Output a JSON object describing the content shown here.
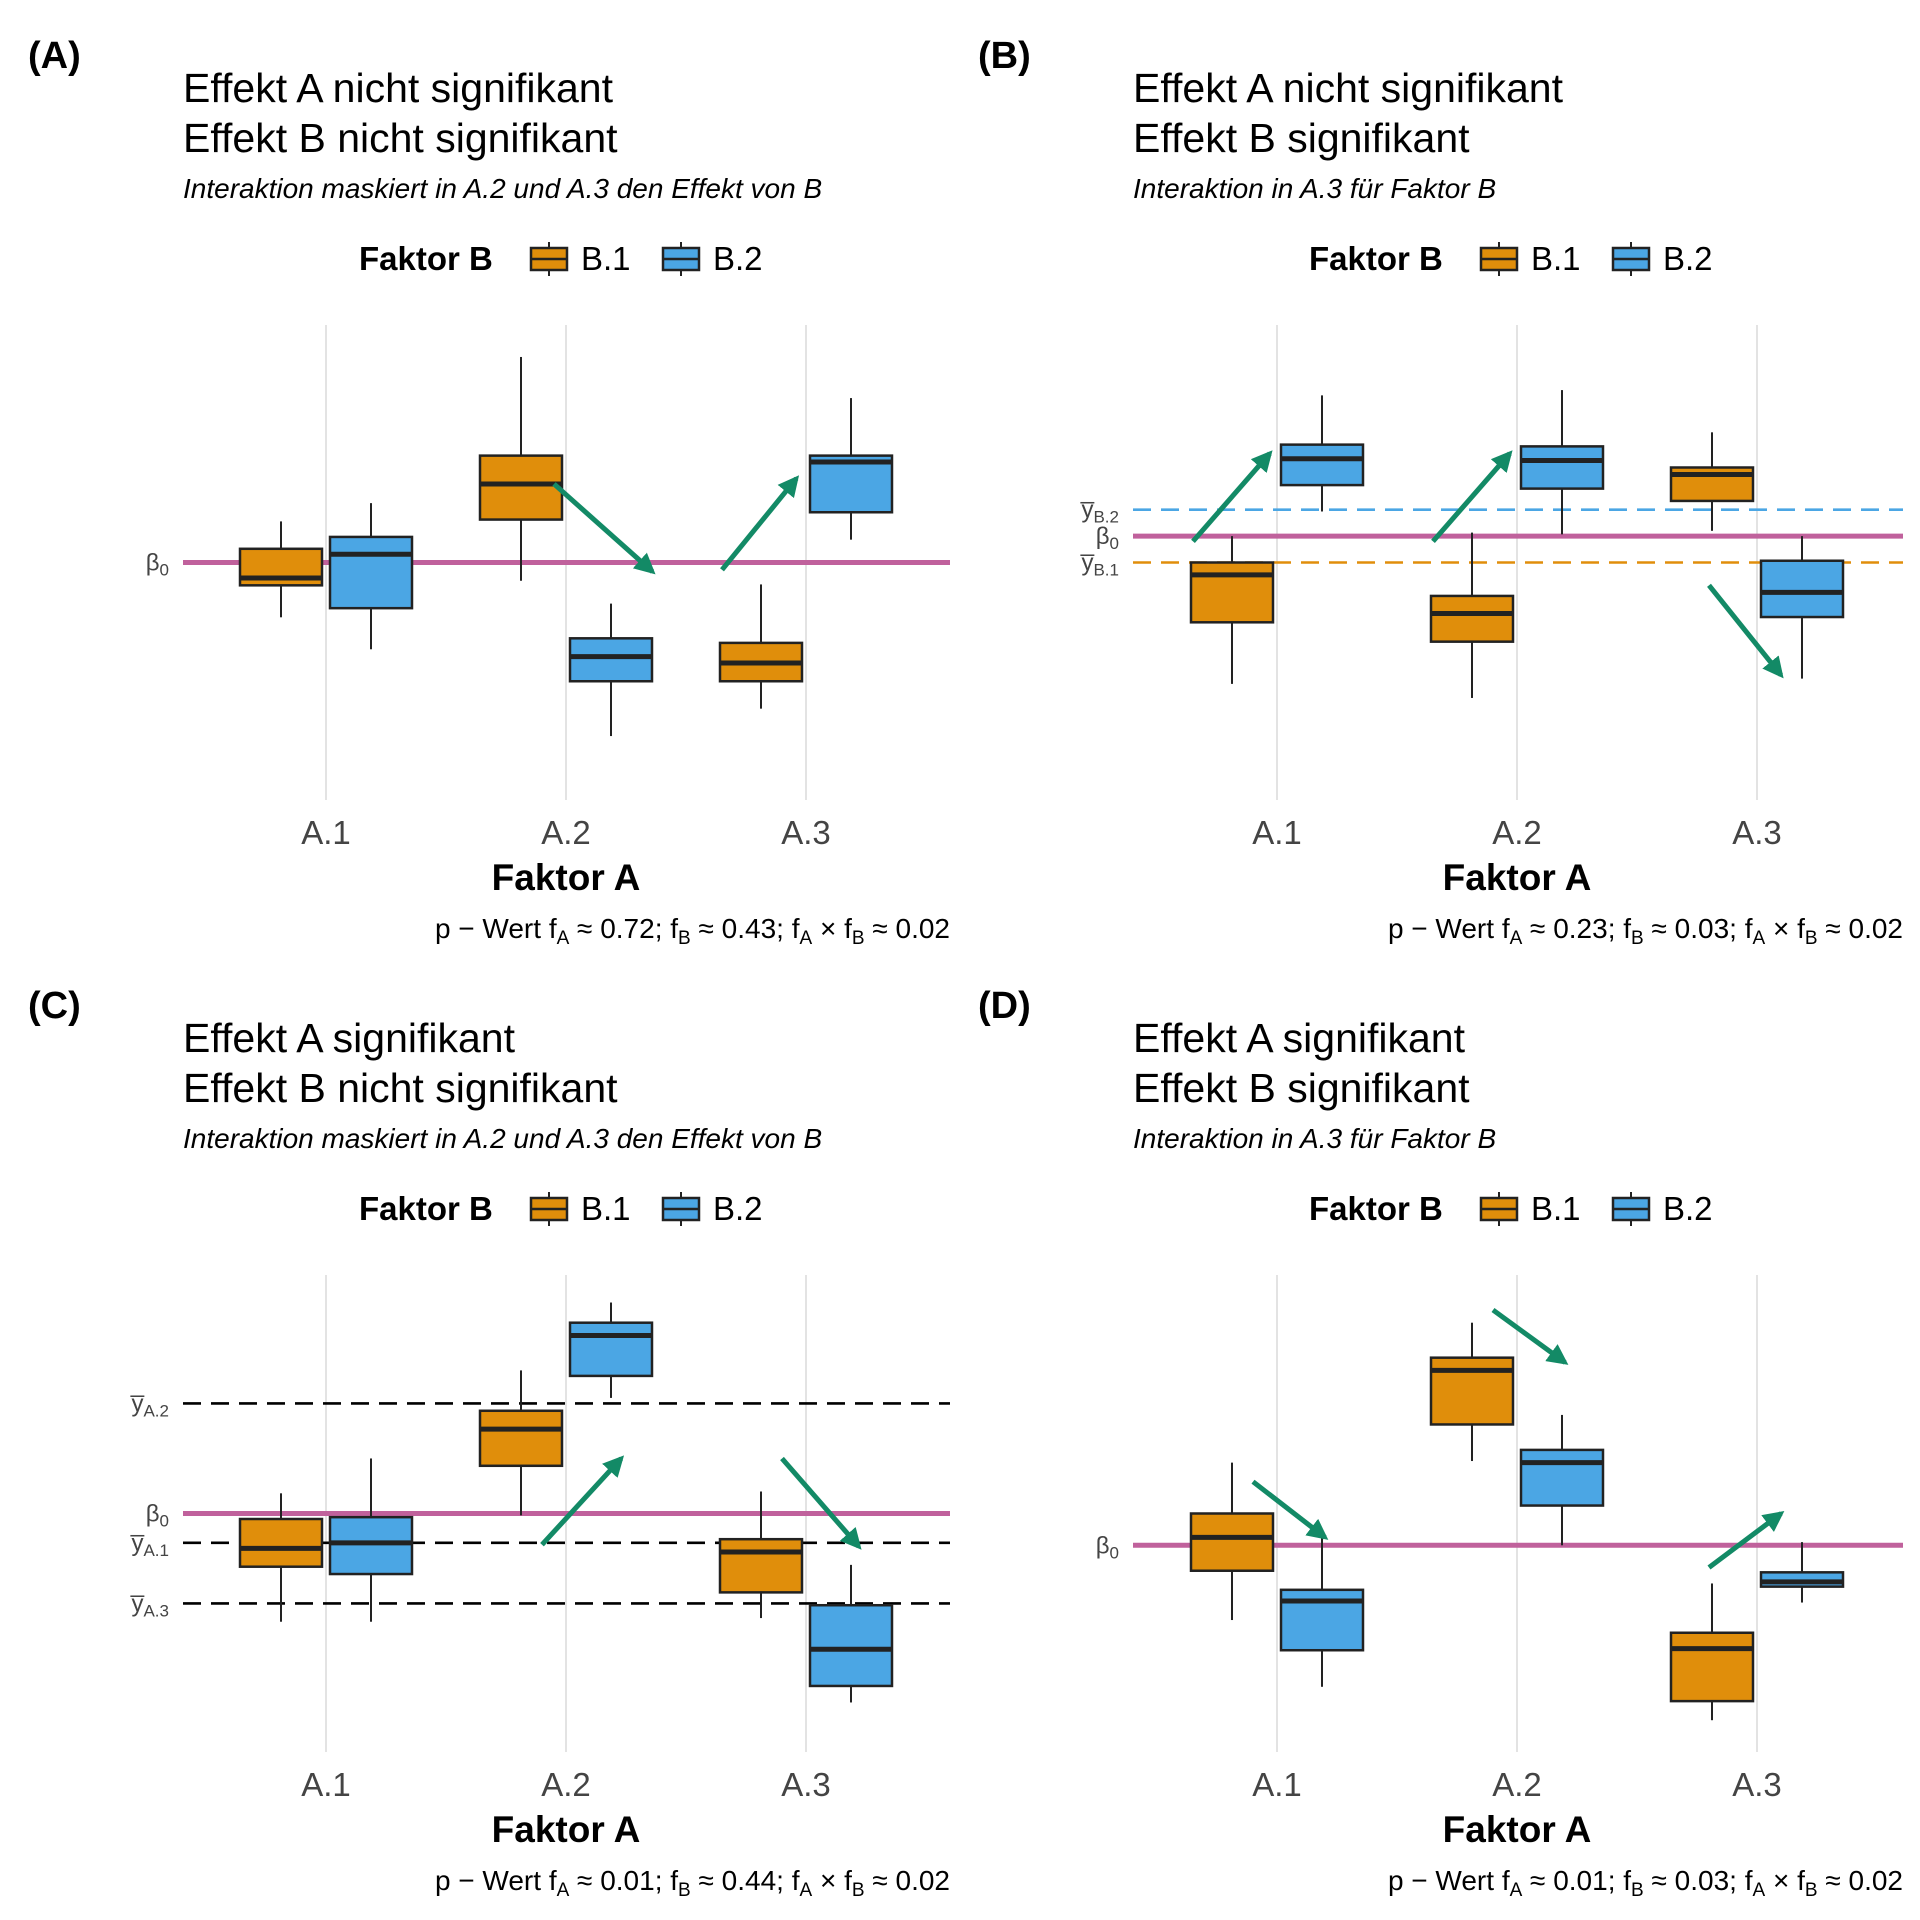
{
  "colors": {
    "B.1": "#E08E0B",
    "B.2": "#4BA6E4",
    "beta_line": "#C0619C",
    "arrow": "#138A66",
    "grid": "#E3E3E3",
    "dashed_B1": "#E08E0B",
    "dashed_B2": "#4BA6E4",
    "dashed_A": "#000000"
  },
  "legend": {
    "title": "Faktor B",
    "items": [
      "B.1",
      "B.2"
    ]
  },
  "chart_data": [
    {
      "panel": "(A)",
      "type": "boxplot",
      "title": [
        "Effekt A nicht signifikant",
        "Effekt B nicht signifikant"
      ],
      "subtitle": "Interaktion maskiert in A.2 und A.3 den Effekt von B",
      "xlabel": "Faktor A",
      "categories": [
        "A.1",
        "A.2",
        "A.3"
      ],
      "caption": {
        "prefix": "p − Wert f",
        "a": "A",
        "v1": " ≈ 0.72; f",
        "b": "B",
        "v2": " ≈ 0.43; f",
        "c": "A",
        "mid": " × f",
        "d": "B",
        "v3": " ≈ 0.02"
      },
      "ylim": [
        -2.6,
        2.6
      ],
      "boxes": [
        {
          "cat": "A.1",
          "group": "B.1",
          "min": -0.6,
          "q1": -0.25,
          "median": -0.17,
          "q3": 0.15,
          "max": 0.45
        },
        {
          "cat": "A.1",
          "group": "B.2",
          "min": -0.95,
          "q1": -0.5,
          "median": 0.09,
          "q3": 0.28,
          "max": 0.65
        },
        {
          "cat": "A.2",
          "group": "B.1",
          "min": -0.2,
          "q1": 0.47,
          "median": 0.86,
          "q3": 1.17,
          "max": 2.25
        },
        {
          "cat": "A.2",
          "group": "B.2",
          "min": -1.9,
          "q1": -1.3,
          "median": -1.03,
          "q3": -0.83,
          "max": -0.45
        },
        {
          "cat": "A.3",
          "group": "B.1",
          "min": -1.6,
          "q1": -1.3,
          "median": -1.1,
          "q3": -0.88,
          "max": -0.24
        },
        {
          "cat": "A.3",
          "group": "B.2",
          "min": 0.25,
          "q1": 0.55,
          "median": 1.1,
          "q3": 1.17,
          "max": 1.8
        }
      ],
      "hlines": [
        {
          "y": 0,
          "style": "solid",
          "color": "beta_line",
          "label": "β",
          "sub": "0"
        }
      ],
      "arrows": [
        {
          "x0": 1.95,
          "y0": 0.86,
          "x1": 2.36,
          "y1": -0.1
        },
        {
          "x0": 2.65,
          "y0": -0.08,
          "x1": 2.96,
          "y1": 0.92
        }
      ]
    },
    {
      "panel": "(B)",
      "type": "boxplot",
      "title": [
        "Effekt A nicht signifikant",
        "Effekt B signifikant"
      ],
      "subtitle": "Interaktion in A.3 für Faktor B",
      "xlabel": "Faktor A",
      "categories": [
        "A.1",
        "A.2",
        "A.3"
      ],
      "caption": {
        "prefix": "p − Wert f",
        "a": "A",
        "v1": " ≈ 0.23; f",
        "b": "B",
        "v2": " ≈ 0.03; f",
        "c": "A",
        "mid": " × f",
        "d": "B",
        "v3": " ≈ 0.02"
      },
      "ylim": [
        -1.5,
        1.2
      ],
      "boxes": [
        {
          "cat": "A.1",
          "group": "B.1",
          "min": -0.84,
          "q1": -0.49,
          "median": -0.22,
          "q3": -0.15,
          "max": 0.0
        },
        {
          "cat": "A.1",
          "group": "B.2",
          "min": 0.14,
          "q1": 0.29,
          "median": 0.44,
          "q3": 0.52,
          "max": 0.8
        },
        {
          "cat": "A.2",
          "group": "B.1",
          "min": -0.92,
          "q1": -0.6,
          "median": -0.44,
          "q3": -0.34,
          "max": 0.02
        },
        {
          "cat": "A.2",
          "group": "B.2",
          "min": 0.01,
          "q1": 0.27,
          "median": 0.43,
          "q3": 0.51,
          "max": 0.83
        },
        {
          "cat": "A.3",
          "group": "B.1",
          "min": 0.03,
          "q1": 0.2,
          "median": 0.35,
          "q3": 0.39,
          "max": 0.59
        },
        {
          "cat": "A.3",
          "group": "B.2",
          "min": -0.81,
          "q1": -0.46,
          "median": -0.32,
          "q3": -0.14,
          "max": 0.0
        }
      ],
      "hlines": [
        {
          "y": 0.15,
          "style": "dashed",
          "color": "dashed_B2",
          "label": "y̅",
          "sub": "B.2"
        },
        {
          "y": 0,
          "style": "solid",
          "color": "beta_line",
          "label": "β",
          "sub": "0"
        },
        {
          "y": -0.15,
          "style": "dashed",
          "color": "dashed_B1",
          "label": "y̅",
          "sub": "B.1"
        }
      ],
      "arrows": [
        {
          "x0": 0.65,
          "y0": -0.03,
          "x1": 0.97,
          "y1": 0.47
        },
        {
          "x0": 1.65,
          "y0": -0.03,
          "x1": 1.97,
          "y1": 0.47
        },
        {
          "x0": 2.8,
          "y0": -0.28,
          "x1": 3.1,
          "y1": -0.79
        }
      ]
    },
    {
      "panel": "(C)",
      "type": "boxplot",
      "title": [
        "Effekt A signifikant",
        "Effekt B nicht signifikant"
      ],
      "subtitle": "Interaktion maskiert in A.2 und A.3 den Effekt von B",
      "xlabel": "Faktor A",
      "categories": [
        "A.1",
        "A.2",
        "A.3"
      ],
      "caption": {
        "prefix": "p − Wert f",
        "a": "A",
        "v1": " ≈ 0.01; f",
        "b": "B",
        "v2": " ≈ 0.44; f",
        "c": "A",
        "mid": " × f",
        "d": "B",
        "v3": " ≈ 0.02"
      },
      "ylim": [
        -1.3,
        1.3
      ],
      "boxes": [
        {
          "cat": "A.1",
          "group": "B.1",
          "min": -0.59,
          "q1": -0.29,
          "median": -0.19,
          "q3": -0.03,
          "max": 0.11
        },
        {
          "cat": "A.1",
          "group": "B.2",
          "min": -0.59,
          "q1": -0.33,
          "median": -0.16,
          "q3": -0.02,
          "max": 0.3
        },
        {
          "cat": "A.2",
          "group": "B.1",
          "min": -0.01,
          "q1": 0.26,
          "median": 0.46,
          "q3": 0.56,
          "max": 0.78
        },
        {
          "cat": "A.2",
          "group": "B.2",
          "min": 0.63,
          "q1": 0.75,
          "median": 0.97,
          "q3": 1.04,
          "max": 1.15
        },
        {
          "cat": "A.3",
          "group": "B.1",
          "min": -0.57,
          "q1": -0.43,
          "median": -0.21,
          "q3": -0.14,
          "max": 0.12
        },
        {
          "cat": "A.3",
          "group": "B.2",
          "min": -1.03,
          "q1": -0.94,
          "median": -0.74,
          "q3": -0.5,
          "max": -0.28
        }
      ],
      "hlines": [
        {
          "y": 0.6,
          "style": "dashed",
          "color": "dashed_A",
          "label": "y̅",
          "sub": "A.2"
        },
        {
          "y": 0,
          "style": "solid",
          "color": "beta_line",
          "label": "β",
          "sub": "0"
        },
        {
          "y": -0.16,
          "style": "dashed",
          "color": "dashed_A",
          "label": "y̅",
          "sub": "A.1"
        },
        {
          "y": -0.49,
          "style": "dashed",
          "color": "dashed_A",
          "label": "y̅",
          "sub": "A.3"
        }
      ],
      "arrows": [
        {
          "x0": 1.9,
          "y0": -0.17,
          "x1": 2.23,
          "y1": 0.3
        },
        {
          "x0": 2.9,
          "y0": 0.3,
          "x1": 3.22,
          "y1": -0.18
        }
      ]
    },
    {
      "panel": "(D)",
      "type": "boxplot",
      "title": [
        "Effekt A signifikant",
        "Effekt B signifikant"
      ],
      "subtitle": "Interaktion in A.3 für Faktor B",
      "xlabel": "Faktor A",
      "categories": [
        "A.1",
        "A.2",
        "A.3"
      ],
      "caption": {
        "prefix": "p − Wert f",
        "a": "A",
        "v1": " ≈ 0.01; f",
        "b": "B",
        "v2": " ≈ 0.03; f",
        "c": "A",
        "mid": " × f",
        "d": "B",
        "v3": " ≈ 0.02"
      },
      "ylim": [
        -1.3,
        1.7
      ],
      "boxes": [
        {
          "cat": "A.1",
          "group": "B.1",
          "min": -0.47,
          "q1": -0.16,
          "median": 0.05,
          "q3": 0.2,
          "max": 0.52
        },
        {
          "cat": "A.1",
          "group": "B.2",
          "min": -0.89,
          "q1": -0.66,
          "median": -0.35,
          "q3": -0.28,
          "max": 0.05
        },
        {
          "cat": "A.2",
          "group": "B.1",
          "min": 0.53,
          "q1": 0.76,
          "median": 1.1,
          "q3": 1.18,
          "max": 1.4
        },
        {
          "cat": "A.2",
          "group": "B.2",
          "min": 0.0,
          "q1": 0.25,
          "median": 0.52,
          "q3": 0.6,
          "max": 0.82
        },
        {
          "cat": "A.3",
          "group": "B.1",
          "min": -1.1,
          "q1": -0.98,
          "median": -0.65,
          "q3": -0.55,
          "max": -0.24
        },
        {
          "cat": "A.3",
          "group": "B.2",
          "min": -0.36,
          "q1": -0.26,
          "median": -0.23,
          "q3": -0.17,
          "max": 0.02
        }
      ],
      "hlines": [
        {
          "y": 0,
          "style": "solid",
          "color": "beta_line",
          "label": "β",
          "sub": "0"
        }
      ],
      "arrows": [
        {
          "x0": 0.9,
          "y0": 0.4,
          "x1": 1.2,
          "y1": 0.05
        },
        {
          "x0": 1.9,
          "y0": 1.48,
          "x1": 2.2,
          "y1": 1.15
        },
        {
          "x0": 2.8,
          "y0": -0.14,
          "x1": 3.1,
          "y1": 0.2
        }
      ]
    }
  ]
}
